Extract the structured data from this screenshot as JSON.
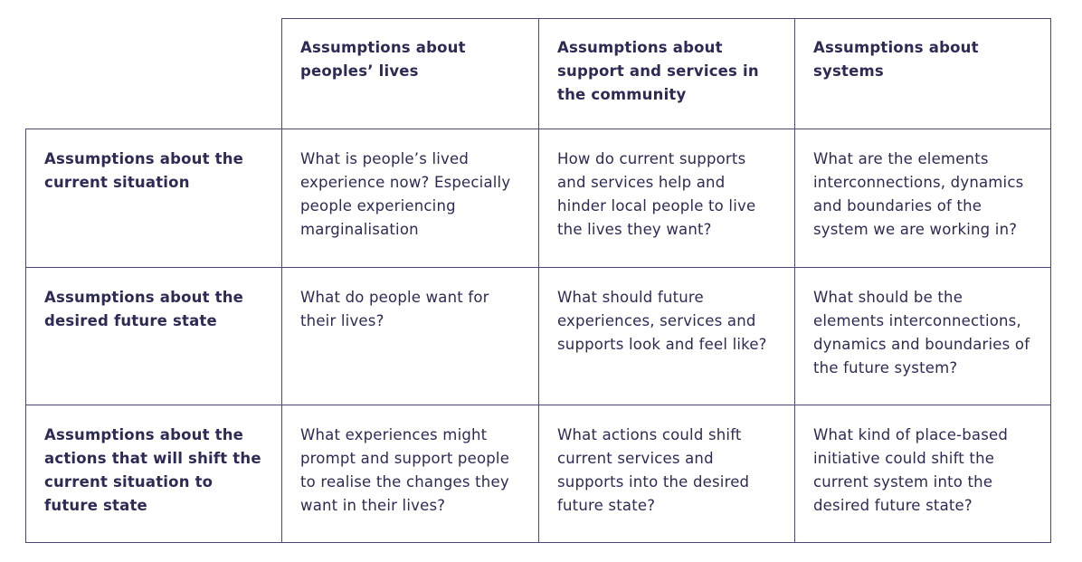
{
  "table": {
    "column_headers": [
      "Assumptions about peoples’ lives",
      "Assumptions about support and services in the community",
      "Assumptions about systems"
    ],
    "rows": [
      {
        "header": "Assumptions about the current situation",
        "cells": [
          "What is people’s lived experience now? Especially people experiencing marginalisation",
          "How do current supports and services help and hinder local people to live the lives they want?",
          "What are the elements interconnections, dynamics and boundaries of the system we are working in?"
        ]
      },
      {
        "header": "Assumptions about the desired future state",
        "cells": [
          "What do people want for their lives?",
          "What should future experiences, services and supports look and feel like?",
          "What should be the elements interconnections, dynamics and boundaries of the future system?"
        ]
      },
      {
        "header": "Assumptions about the actions that will shift the current situation to future state",
        "cells": [
          "What experiences might prompt and support people to realise the changes they want in their lives?",
          "What actions could shift current services and supports into the desired future state?",
          "What kind of place-based initiative could shift the current system into the desired future state?"
        ]
      }
    ]
  }
}
